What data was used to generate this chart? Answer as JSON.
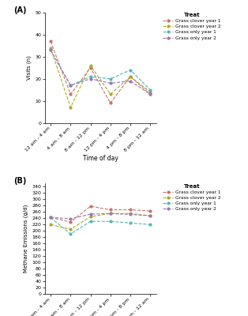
{
  "time_labels": [
    "12 am - 4 am",
    "4 am - 8 am",
    "8 am - 12 pm",
    "12 pm - 4 pm",
    "4 pm - 8 pm",
    "8 pm - 12 am"
  ],
  "panel_a": {
    "title": "(A)",
    "ylabel": "Visits (n)",
    "ylim": [
      0,
      50
    ],
    "yticks": [
      0,
      10,
      20,
      30,
      40,
      50
    ],
    "series": {
      "Grass clover year 1": [
        37,
        13,
        25,
        9,
        21,
        14
      ],
      "Grass clover year 2": [
        34,
        7,
        26,
        13,
        21,
        13
      ],
      "Grass only year 1": [
        33,
        17,
        21,
        20,
        24,
        15
      ],
      "Grass only year 2": [
        33,
        17,
        20,
        18,
        19,
        13
      ]
    }
  },
  "panel_b": {
    "title": "(B)",
    "ylabel": "Methane Emissions (g/d)",
    "ylim": [
      0,
      350
    ],
    "yticks": [
      0,
      20,
      40,
      60,
      80,
      100,
      120,
      140,
      160,
      180,
      200,
      220,
      240,
      260,
      280,
      300,
      320,
      340
    ],
    "series": {
      "Grass clover year 1": [
        243,
        228,
        278,
        267,
        267,
        263
      ],
      "Grass clover year 2": [
        220,
        205,
        245,
        255,
        255,
        248
      ],
      "Grass only year 1": [
        242,
        190,
        230,
        230,
        225,
        220
      ],
      "Grass only year 2": [
        243,
        238,
        253,
        255,
        252,
        248
      ]
    }
  },
  "colors": {
    "Grass clover year 1": "#c9736a",
    "Grass clover year 2": "#b0a830",
    "Grass only year 1": "#55b8b0",
    "Grass only year 2": "#9b78b5"
  },
  "linestyles": {
    "Grass clover year 1": "--",
    "Grass clover year 2": "--",
    "Grass only year 1": "--",
    "Grass only year 2": "--"
  },
  "markers": {
    "Grass clover year 1": "o",
    "Grass clover year 2": "o",
    "Grass only year 1": "o",
    "Grass only year 2": "o"
  },
  "legend_title": "Treat",
  "xlabel": "Time of day",
  "background_color": "#ffffff",
  "linewidth": 0.8,
  "markersize": 2.0
}
